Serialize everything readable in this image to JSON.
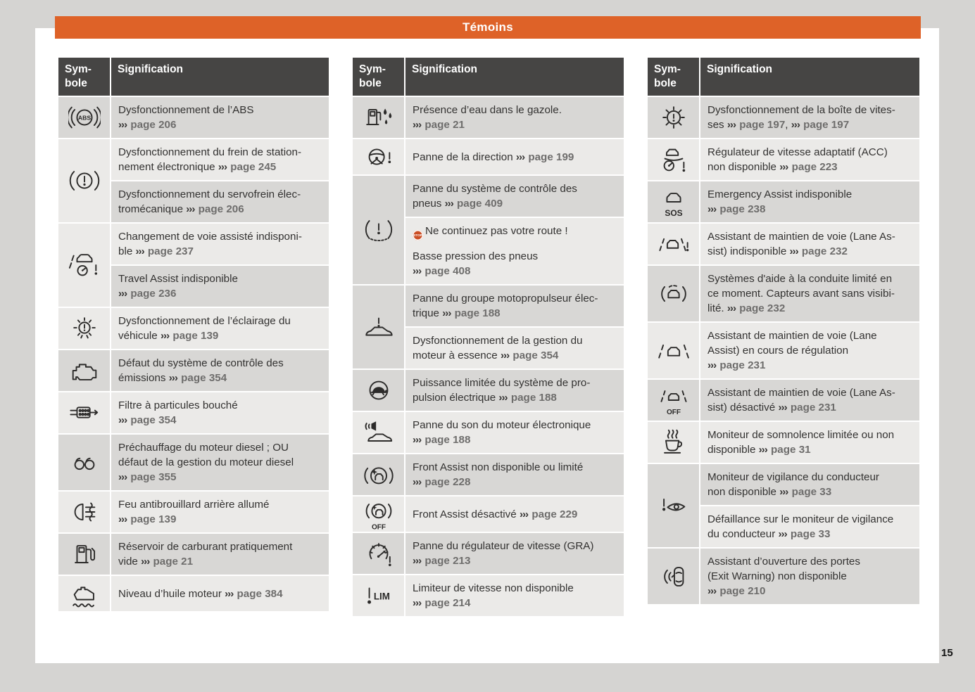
{
  "page": {
    "title": "Témoins",
    "page_number": "15"
  },
  "colors": {
    "accent_orange": "#de6228",
    "header_dark": "#464544",
    "row_gray": "#d8d7d5",
    "row_light": "#ebeae8",
    "margin_gray": "#d5d4d2",
    "page_ref_gray": "#6e6d6c",
    "stop_badge": "#cb4e24"
  },
  "table_header": {
    "symbol": "Sym-\nbole",
    "signification": "Signification"
  },
  "tables": [
    {
      "entries": [
        {
          "icon": "abs-warning-icon",
          "icon_text": "ABS",
          "cells": [
            [
              [
                [
                  "p",
                  "Dysfonctionnement de l’ABS"
                ]
              ],
              [
                [
                  "a",
                  "››› "
                ],
                [
                  "g",
                  "page 206"
                ]
              ]
            ]
          ]
        },
        {
          "icon": "brake-system-warning-icon",
          "cells": [
            [
              [
                [
                  "p",
                  "Dysfonctionnement du frein de station-"
                ]
              ],
              [
                [
                  "p",
                  "nement électronique "
                ],
                [
                  "a",
                  "››› "
                ],
                [
                  "g",
                  "page 245"
                ]
              ]
            ],
            [
              [
                [
                  "p",
                  "Dysfonctionnement du servofrein élec-"
                ]
              ],
              [
                [
                  "p",
                  "tromécanique "
                ],
                [
                  "a",
                  "››› "
                ],
                [
                  "g",
                  "page 206"
                ]
              ]
            ]
          ]
        },
        {
          "icon": "lane-change-assist-icon",
          "cells": [
            [
              [
                [
                  "p",
                  "Changement de voie assisté indisponi-"
                ]
              ],
              [
                [
                  "p",
                  "ble "
                ],
                [
                  "a",
                  "››› "
                ],
                [
                  "g",
                  "page 237"
                ]
              ]
            ],
            [
              [
                [
                  "p",
                  "Travel Assist indisponible"
                ]
              ],
              [
                [
                  "a",
                  "››› "
                ],
                [
                  "g",
                  "page 236"
                ]
              ]
            ]
          ]
        },
        {
          "icon": "vehicle-lighting-icon",
          "cells": [
            [
              [
                [
                  "p",
                  "Dysfonctionnement de l’éclairage du"
                ]
              ],
              [
                [
                  "p",
                  "véhicule "
                ],
                [
                  "a",
                  "››› "
                ],
                [
                  "g",
                  "page 139"
                ]
              ]
            ]
          ]
        },
        {
          "icon": "check-engine-icon",
          "cells": [
            [
              [
                [
                  "p",
                  "Défaut du système de contrôle des"
                ]
              ],
              [
                [
                  "p",
                  "émissions "
                ],
                [
                  "a",
                  "››› "
                ],
                [
                  "g",
                  "page 354"
                ]
              ]
            ]
          ]
        },
        {
          "icon": "particulate-filter-icon",
          "cells": [
            [
              [
                [
                  "p",
                  "Filtre à particules bouché"
                ]
              ],
              [
                [
                  "a",
                  "››› "
                ],
                [
                  "g",
                  "page 354"
                ]
              ]
            ]
          ]
        },
        {
          "icon": "glow-plug-icon",
          "cells": [
            [
              [
                [
                  "p",
                  "Préchauffage du moteur diesel ; OU"
                ]
              ],
              [
                [
                  "p",
                  "défaut de la gestion du moteur diesel"
                ]
              ],
              [
                [
                  "a",
                  "››› "
                ],
                [
                  "g",
                  "page 355"
                ]
              ]
            ]
          ]
        },
        {
          "icon": "rear-fog-light-icon",
          "cells": [
            [
              [
                [
                  "p",
                  "Feu antibrouillard arrière allumé"
                ]
              ],
              [
                [
                  "a",
                  "››› "
                ],
                [
                  "g",
                  "page 139"
                ]
              ]
            ]
          ]
        },
        {
          "icon": "fuel-reserve-icon",
          "cells": [
            [
              [
                [
                  "p",
                  "Réservoir de carburant pratiquement"
                ]
              ],
              [
                [
                  "p",
                  "vide "
                ],
                [
                  "a",
                  "››› "
                ],
                [
                  "g",
                  "page 21"
                ]
              ]
            ]
          ]
        },
        {
          "icon": "engine-oil-level-icon",
          "cells": [
            [
              [
                [
                  "p",
                  "Niveau d’huile moteur "
                ],
                [
                  "a",
                  "››› "
                ],
                [
                  "g",
                  "page 384"
                ]
              ]
            ]
          ]
        }
      ]
    },
    {
      "entries": [
        {
          "icon": "water-in-fuel-icon",
          "cells": [
            [
              [
                [
                  "p",
                  "Présence d’eau dans le gazole."
                ]
              ],
              [
                [
                  "a",
                  "››› "
                ],
                [
                  "g",
                  "page 21"
                ]
              ]
            ]
          ]
        },
        {
          "icon": "steering-warning-icon",
          "cells": [
            [
              [
                [
                  "p",
                  "Panne de la direction "
                ],
                [
                  "a",
                  "››› "
                ],
                [
                  "g",
                  "page 199"
                ]
              ]
            ]
          ]
        },
        {
          "icon": "tire-pressure-warning-icon",
          "cells": [
            [
              [
                [
                  "p",
                  "Panne du système de contrôle des"
                ]
              ],
              [
                [
                  "p",
                  "pneus "
                ],
                [
                  "a",
                  "››› "
                ],
                [
                  "g",
                  "page 409"
                ]
              ]
            ],
            [
              [
                [
                  "s",
                  "STOP"
                ],
                [
                  "p",
                  "Ne continuez pas votre route !"
                ]
              ],
              [
                [
                  "p",
                  "Basse pression des pneus"
                ]
              ],
              [
                [
                  "a",
                  "››› "
                ],
                [
                  "g",
                  "page 408"
                ]
              ]
            ]
          ]
        },
        {
          "icon": "electric-drive-warning-icon",
          "cells": [
            [
              [
                [
                  "p",
                  "Panne du groupe motopropulseur élec-"
                ]
              ],
              [
                [
                  "p",
                  "trique "
                ],
                [
                  "a",
                  "››› "
                ],
                [
                  "g",
                  "page 188"
                ]
              ]
            ],
            [
              [
                [
                  "p",
                  "Dysfonctionnement de la gestion du"
                ]
              ],
              [
                [
                  "p",
                  "moteur à essence "
                ],
                [
                  "a",
                  "››› "
                ],
                [
                  "g",
                  "page 354"
                ]
              ]
            ]
          ]
        },
        {
          "icon": "reduced-power-turtle-icon",
          "cells": [
            [
              [
                [
                  "p",
                  "Puissance limitée du système de pro-"
                ]
              ],
              [
                [
                  "p",
                  "pulsion électrique "
                ],
                [
                  "a",
                  "››› "
                ],
                [
                  "g",
                  "page 188"
                ]
              ]
            ]
          ]
        },
        {
          "icon": "e-sound-warning-icon",
          "cells": [
            [
              [
                [
                  "p",
                  "Panne du son du moteur électronique"
                ]
              ],
              [
                [
                  "a",
                  "››› "
                ],
                [
                  "g",
                  "page 188"
                ]
              ]
            ]
          ]
        },
        {
          "icon": "front-assist-icon",
          "cells": [
            [
              [
                [
                  "p",
                  "Front Assist non disponible ou limité"
                ]
              ],
              [
                [
                  "a",
                  "››› "
                ],
                [
                  "g",
                  "page 228"
                ]
              ]
            ]
          ]
        },
        {
          "icon": "front-assist-off-icon",
          "icon_text": "OFF",
          "cells": [
            [
              [
                [
                  "p",
                  "Front Assist désactivé "
                ],
                [
                  "a",
                  "››› "
                ],
                [
                  "g",
                  "page 229"
                ]
              ]
            ]
          ]
        },
        {
          "icon": "cruise-control-warning-icon",
          "cells": [
            [
              [
                [
                  "p",
                  "Panne du régulateur de vitesse (GRA)"
                ]
              ],
              [
                [
                  "a",
                  "››› "
                ],
                [
                  "g",
                  "page 213"
                ]
              ]
            ]
          ]
        },
        {
          "icon": "speed-limiter-icon",
          "icon_text": "LIM",
          "cells": [
            [
              [
                [
                  "p",
                  "Limiteur de vitesse non disponible"
                ]
              ],
              [
                [
                  "a",
                  "››› "
                ],
                [
                  "g",
                  "page 214"
                ]
              ]
            ]
          ]
        }
      ]
    },
    {
      "entries": [
        {
          "icon": "gearbox-warning-icon",
          "cells": [
            [
              [
                [
                  "p",
                  "Dysfonctionnement de la boîte de vites-"
                ]
              ],
              [
                [
                  "p",
                  "ses "
                ],
                [
                  "a",
                  "››› "
                ],
                [
                  "g",
                  "page 197"
                ],
                [
                  "p",
                  ", "
                ],
                [
                  "a",
                  "››› "
                ],
                [
                  "g",
                  "page 197"
                ]
              ]
            ]
          ]
        },
        {
          "icon": "acc-unavailable-icon",
          "cells": [
            [
              [
                [
                  "p",
                  "Régulateur de vitesse adaptatif (ACC)"
                ]
              ],
              [
                [
                  "p",
                  "non disponible "
                ],
                [
                  "a",
                  "››› "
                ],
                [
                  "g",
                  "page 223"
                ]
              ]
            ]
          ]
        },
        {
          "icon": "emergency-assist-icon",
          "icon_text": "SOS",
          "cells": [
            [
              [
                [
                  "p",
                  "Emergency Assist indisponible"
                ]
              ],
              [
                [
                  "a",
                  "››› "
                ],
                [
                  "g",
                  "page 238"
                ]
              ]
            ]
          ]
        },
        {
          "icon": "lane-assist-unavailable-icon",
          "cells": [
            [
              [
                [
                  "p",
                  "Assistant de maintien de voie (Lane As-"
                ]
              ],
              [
                [
                  "p",
                  "sist) indisponible "
                ],
                [
                  "a",
                  "››› "
                ],
                [
                  "g",
                  "page 232"
                ]
              ]
            ]
          ]
        },
        {
          "icon": "front-sensors-blocked-icon",
          "cells": [
            [
              [
                [
                  "p",
                  "Systèmes d'aide à la conduite limité en"
                ]
              ],
              [
                [
                  "p",
                  "ce moment. Capteurs avant sans visibi-"
                ]
              ],
              [
                [
                  "p",
                  "lité. "
                ],
                [
                  "a",
                  "››› "
                ],
                [
                  "g",
                  "page 232"
                ]
              ]
            ]
          ]
        },
        {
          "icon": "lane-assist-active-icon",
          "cells": [
            [
              [
                [
                  "p",
                  "Assistant de maintien de voie (Lane"
                ]
              ],
              [
                [
                  "p",
                  "Assist) en cours de régulation"
                ]
              ],
              [
                [
                  "a",
                  "››› "
                ],
                [
                  "g",
                  "page 231"
                ]
              ]
            ]
          ]
        },
        {
          "icon": "lane-assist-off-icon",
          "icon_text": "OFF",
          "cells": [
            [
              [
                [
                  "p",
                  "Assistant de maintien de voie (Lane As-"
                ]
              ],
              [
                [
                  "p",
                  "sist) désactivé "
                ],
                [
                  "a",
                  "››› "
                ],
                [
                  "g",
                  "page 231"
                ]
              ]
            ]
          ]
        },
        {
          "icon": "drowsiness-detection-icon",
          "cells": [
            [
              [
                [
                  "p",
                  "Moniteur de somnolence limitée ou non"
                ]
              ],
              [
                [
                  "p",
                  "disponible "
                ],
                [
                  "a",
                  "››› "
                ],
                [
                  "g",
                  "page 31"
                ]
              ]
            ]
          ]
        },
        {
          "icon": "driver-alert-warning-icon",
          "cells": [
            [
              [
                [
                  "p",
                  "Moniteur de vigilance du conducteur"
                ]
              ],
              [
                [
                  "p",
                  "non disponible "
                ],
                [
                  "a",
                  "››› "
                ],
                [
                  "g",
                  "page 33"
                ]
              ]
            ],
            [
              [
                [
                  "p",
                  "Défaillance sur le moniteur de vigilance"
                ]
              ],
              [
                [
                  "p",
                  "du conducteur "
                ],
                [
                  "a",
                  "››› "
                ],
                [
                  "g",
                  "page 33"
                ]
              ]
            ]
          ]
        },
        {
          "icon": "exit-warning-icon",
          "cells": [
            [
              [
                [
                  "p",
                  "Assistant d’ouverture des portes"
                ]
              ],
              [
                [
                  "p",
                  "(Exit Warning) non disponible"
                ]
              ],
              [
                [
                  "a",
                  "››› "
                ],
                [
                  "g",
                  "page 210"
                ]
              ]
            ]
          ]
        }
      ]
    }
  ]
}
